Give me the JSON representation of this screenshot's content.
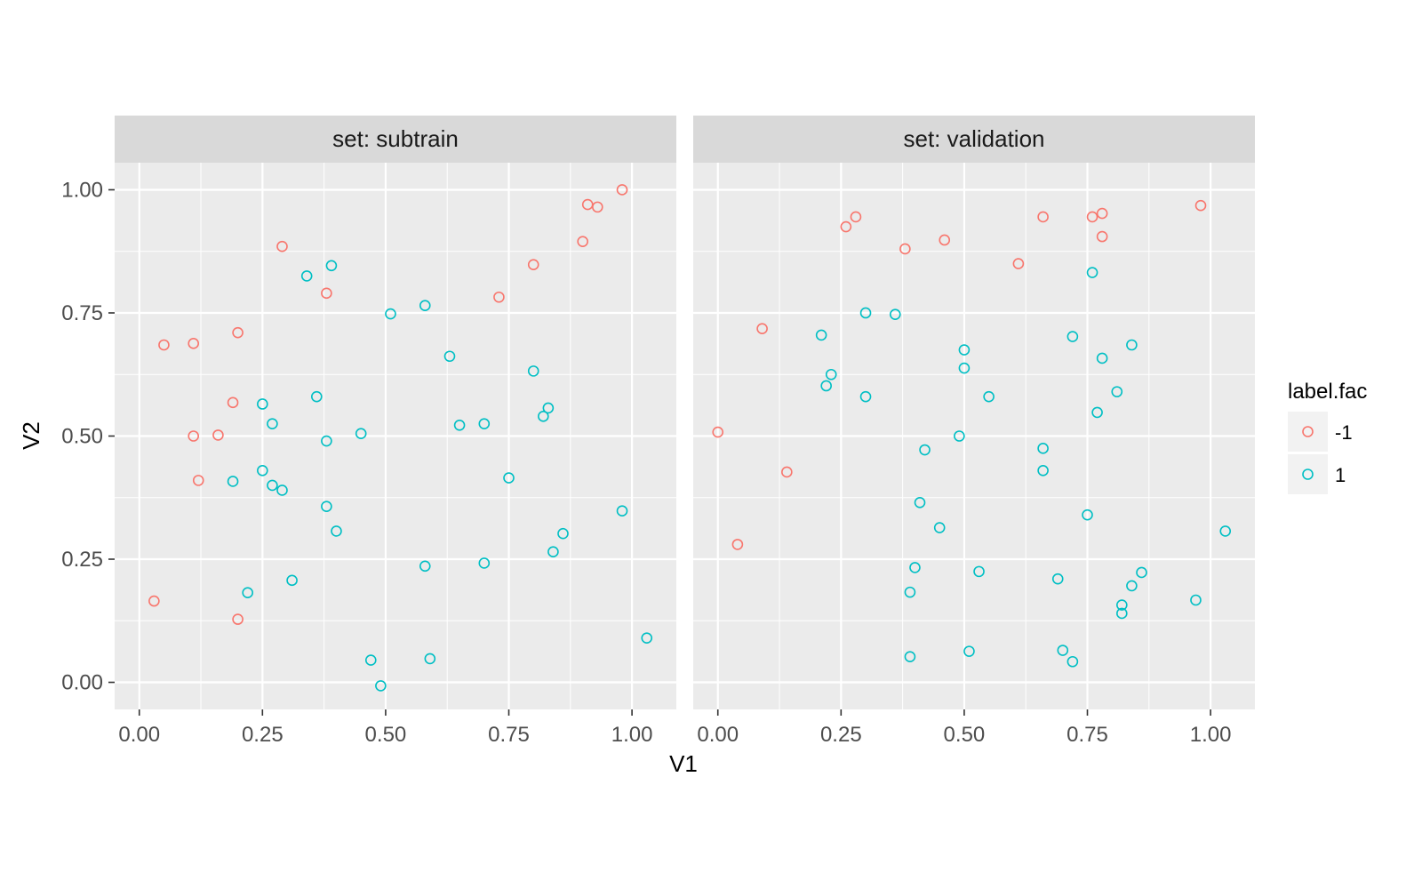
{
  "chart_data": {
    "type": "scatter",
    "facet_prefix": "set: ",
    "xlabel": "V1",
    "ylabel": "V2",
    "xlim": [
      -0.05,
      1.09
    ],
    "ylim": [
      -0.055,
      1.055
    ],
    "x_ticks": [
      0,
      0.25,
      0.5,
      0.75,
      1.0
    ],
    "x_tick_labels": [
      "0.00",
      "0.25",
      "0.50",
      "0.75",
      "1.00"
    ],
    "y_ticks": [
      0,
      0.25,
      0.5,
      0.75,
      1.0
    ],
    "y_tick_labels": [
      "0.00",
      "0.25",
      "0.50",
      "0.75",
      "1.00"
    ],
    "grid": true,
    "legend": {
      "title": "label.fac",
      "placement": "right",
      "entries": [
        {
          "label": "-1",
          "color": "#F8766D"
        },
        {
          "label": "1",
          "color": "#00BFC4"
        }
      ]
    },
    "panels": [
      {
        "name": "subtrain",
        "series": [
          {
            "name": "-1",
            "color": "#F8766D",
            "points": [
              [
                0.03,
                0.165
              ],
              [
                0.05,
                0.685
              ],
              [
                0.11,
                0.688
              ],
              [
                0.2,
                0.71
              ],
              [
                0.19,
                0.568
              ],
              [
                0.11,
                0.5
              ],
              [
                0.16,
                0.502
              ],
              [
                0.12,
                0.41
              ],
              [
                0.2,
                0.128
              ],
              [
                0.29,
                0.885
              ],
              [
                0.38,
                0.79
              ],
              [
                0.73,
                0.782
              ],
              [
                0.8,
                0.848
              ],
              [
                0.9,
                0.895
              ],
              [
                0.91,
                0.97
              ],
              [
                0.93,
                0.965
              ],
              [
                0.98,
                1.0
              ]
            ]
          },
          {
            "name": "1",
            "color": "#00BFC4",
            "points": [
              [
                0.25,
                0.565
              ],
              [
                0.27,
                0.525
              ],
              [
                0.25,
                0.43
              ],
              [
                0.19,
                0.408
              ],
              [
                0.27,
                0.4
              ],
              [
                0.29,
                0.39
              ],
              [
                0.22,
                0.182
              ],
              [
                0.31,
                0.207
              ],
              [
                0.34,
                0.825
              ],
              [
                0.39,
                0.846
              ],
              [
                0.36,
                0.58
              ],
              [
                0.38,
                0.49
              ],
              [
                0.38,
                0.357
              ],
              [
                0.4,
                0.307
              ],
              [
                0.45,
                0.505
              ],
              [
                0.51,
                0.748
              ],
              [
                0.58,
                0.765
              ],
              [
                0.63,
                0.662
              ],
              [
                0.65,
                0.522
              ],
              [
                0.7,
                0.525
              ],
              [
                0.75,
                0.415
              ],
              [
                0.8,
                0.632
              ],
              [
                0.82,
                0.54
              ],
              [
                0.83,
                0.557
              ],
              [
                0.86,
                0.302
              ],
              [
                0.84,
                0.265
              ],
              [
                0.98,
                0.348
              ],
              [
                0.7,
                0.242
              ],
              [
                0.58,
                0.236
              ],
              [
                0.47,
                0.045
              ],
              [
                0.59,
                0.048
              ],
              [
                0.49,
                -0.007
              ],
              [
                1.03,
                0.09
              ]
            ]
          }
        ]
      },
      {
        "name": "validation",
        "series": [
          {
            "name": "-1",
            "color": "#F8766D",
            "points": [
              [
                0.0,
                0.508
              ],
              [
                0.04,
                0.28
              ],
              [
                0.09,
                0.718
              ],
              [
                0.14,
                0.427
              ],
              [
                0.26,
                0.925
              ],
              [
                0.28,
                0.945
              ],
              [
                0.38,
                0.88
              ],
              [
                0.46,
                0.898
              ],
              [
                0.61,
                0.85
              ],
              [
                0.66,
                0.945
              ],
              [
                0.76,
                0.945
              ],
              [
                0.78,
                0.952
              ],
              [
                0.78,
                0.905
              ],
              [
                0.98,
                0.968
              ]
            ]
          },
          {
            "name": "1",
            "color": "#00BFC4",
            "points": [
              [
                0.21,
                0.705
              ],
              [
                0.23,
                0.625
              ],
              [
                0.22,
                0.602
              ],
              [
                0.3,
                0.75
              ],
              [
                0.3,
                0.58
              ],
              [
                0.36,
                0.747
              ],
              [
                0.42,
                0.472
              ],
              [
                0.41,
                0.365
              ],
              [
                0.45,
                0.314
              ],
              [
                0.4,
                0.233
              ],
              [
                0.39,
                0.183
              ],
              [
                0.39,
                0.052
              ],
              [
                0.5,
                0.675
              ],
              [
                0.5,
                0.638
              ],
              [
                0.49,
                0.5
              ],
              [
                0.55,
                0.58
              ],
              [
                0.53,
                0.225
              ],
              [
                0.51,
                0.063
              ],
              [
                0.66,
                0.475
              ],
              [
                0.66,
                0.43
              ],
              [
                0.7,
                0.065
              ],
              [
                0.72,
                0.042
              ],
              [
                0.69,
                0.21
              ],
              [
                0.72,
                0.702
              ],
              [
                0.76,
                0.832
              ],
              [
                0.78,
                0.658
              ],
              [
                0.77,
                0.548
              ],
              [
                0.81,
                0.59
              ],
              [
                0.84,
                0.685
              ],
              [
                0.75,
                0.34
              ],
              [
                0.86,
                0.223
              ],
              [
                0.84,
                0.196
              ],
              [
                0.82,
                0.157
              ],
              [
                0.82,
                0.14
              ],
              [
                0.97,
                0.167
              ],
              [
                1.03,
                0.307
              ]
            ]
          }
        ]
      }
    ]
  }
}
